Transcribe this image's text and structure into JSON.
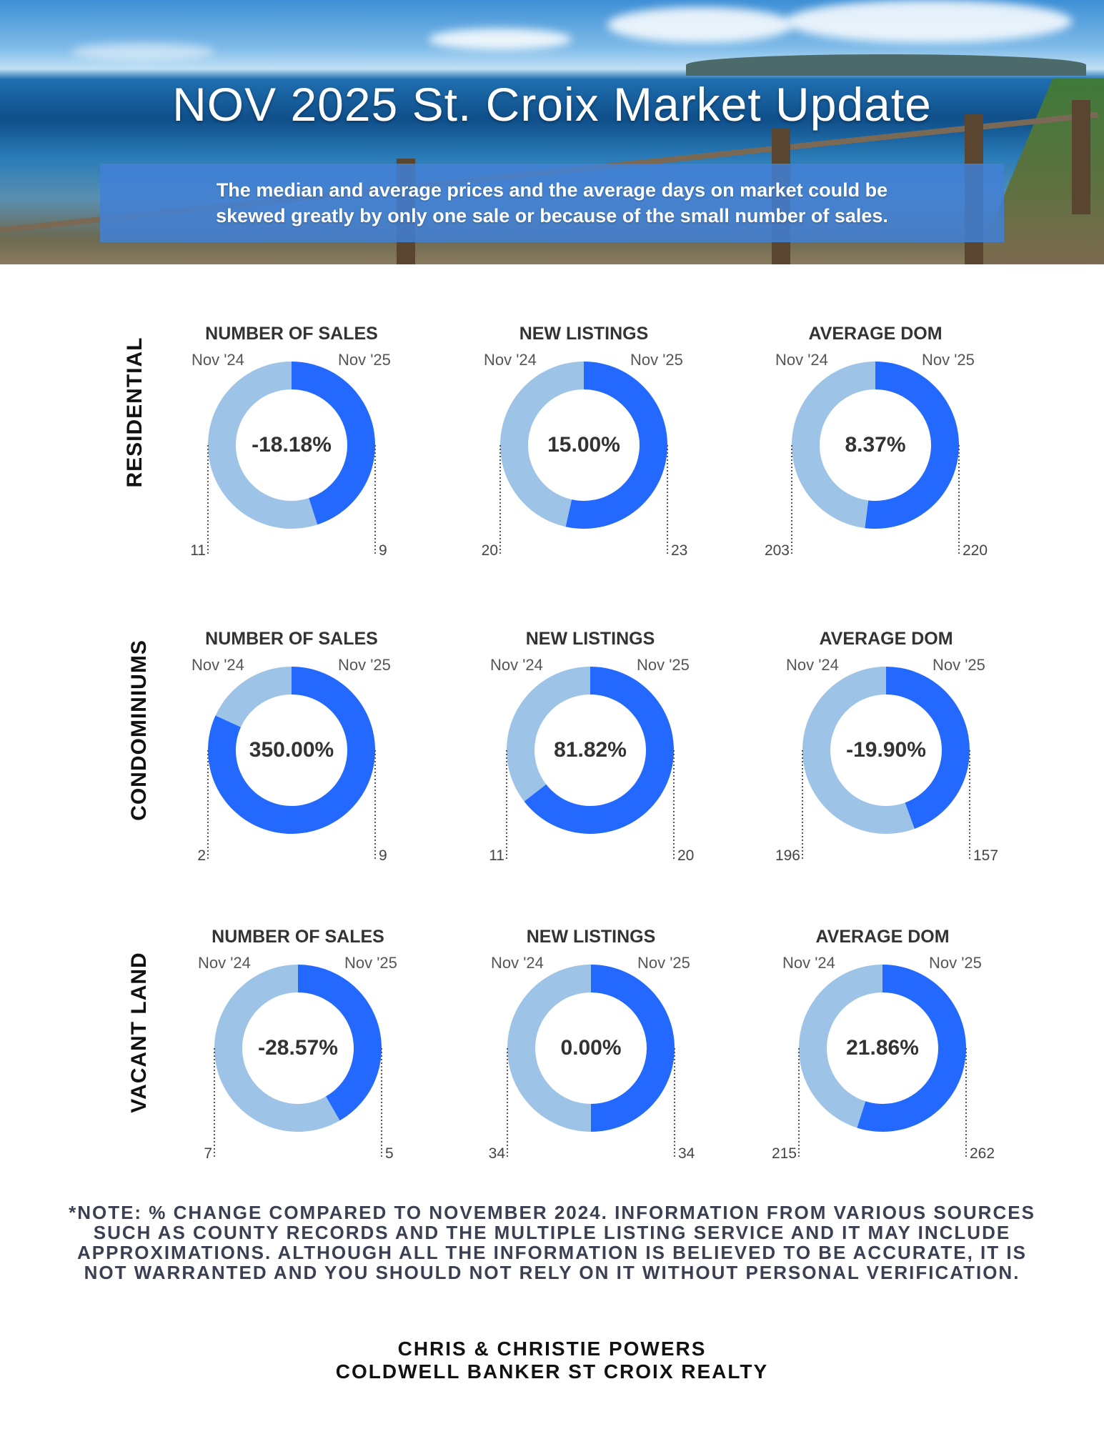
{
  "header": {
    "title": "NOV 2025 St. Croix Market Update",
    "disclaimer_line1": "The median and average prices and  the average days on market could be",
    "disclaimer_line2": "skewed greatly by only one sale or because of the small number of sales."
  },
  "legend": {
    "prev": "Nov '24",
    "curr": "Nov '25"
  },
  "colors": {
    "prev": "#9dc3e6",
    "curr": "#2469ff"
  },
  "rows": [
    "RESIDENTIAL",
    "CONDOMINIUMS",
    "VACANT LAND"
  ],
  "chart_data": [
    {
      "type": "pie",
      "row": "RESIDENTIAL",
      "title": "NUMBER OF SALES",
      "categories": [
        "Nov '24",
        "Nov '25"
      ],
      "values": [
        11,
        9
      ],
      "center_label": "-18.18%"
    },
    {
      "type": "pie",
      "row": "RESIDENTIAL",
      "title": "NEW LISTINGS",
      "categories": [
        "Nov '24",
        "Nov '25"
      ],
      "values": [
        20,
        23
      ],
      "center_label": "15.00%"
    },
    {
      "type": "pie",
      "row": "RESIDENTIAL",
      "title": "AVERAGE DOM",
      "categories": [
        "Nov '24",
        "Nov '25"
      ],
      "values": [
        203,
        220
      ],
      "center_label": "8.37%"
    },
    {
      "type": "pie",
      "row": "CONDOMINIUMS",
      "title": "NUMBER OF SALES",
      "categories": [
        "Nov '24",
        "Nov '25"
      ],
      "values": [
        2,
        9
      ],
      "center_label": "350.00%"
    },
    {
      "type": "pie",
      "row": "CONDOMINIUMS",
      "title": "NEW LISTINGS",
      "categories": [
        "Nov '24",
        "Nov '25"
      ],
      "values": [
        11,
        20
      ],
      "center_label": "81.82%"
    },
    {
      "type": "pie",
      "row": "CONDOMINIUMS",
      "title": "AVERAGE DOM",
      "categories": [
        "Nov '24",
        "Nov '25"
      ],
      "values": [
        196,
        157
      ],
      "center_label": "-19.90%"
    },
    {
      "type": "pie",
      "row": "VACANT LAND",
      "title": "NUMBER OF SALES",
      "categories": [
        "Nov '24",
        "Nov '25"
      ],
      "values": [
        7,
        5
      ],
      "center_label": "-28.57%"
    },
    {
      "type": "pie",
      "row": "VACANT LAND",
      "title": "NEW LISTINGS",
      "categories": [
        "Nov '24",
        "Nov '25"
      ],
      "values": [
        34,
        34
      ],
      "center_label": "0.00%"
    },
    {
      "type": "pie",
      "row": "VACANT LAND",
      "title": "AVERAGE DOM",
      "categories": [
        "Nov '24",
        "Nov '25"
      ],
      "values": [
        215,
        262
      ],
      "center_label": "21.86%"
    }
  ],
  "note": "*NOTE: % CHANGE COMPARED TO NOVEMBER 2024. INFORMATION FROM VARIOUS SOURCES SUCH AS COUNTY RECORDS AND THE MULTIPLE LISTING SERVICE AND IT MAY INCLUDE APPROXIMATIONS. ALTHOUGH ALL THE INFORMATION IS BELIEVED TO BE ACCURATE, IT IS NOT WARRANTED AND YOU SHOULD NOT RELY ON IT WITHOUT PERSONAL VERIFICATION.",
  "footer": {
    "line1": "CHRIS & CHRISTIE POWERS",
    "line2": "COLDWELL BANKER ST CROIX REALTY"
  }
}
